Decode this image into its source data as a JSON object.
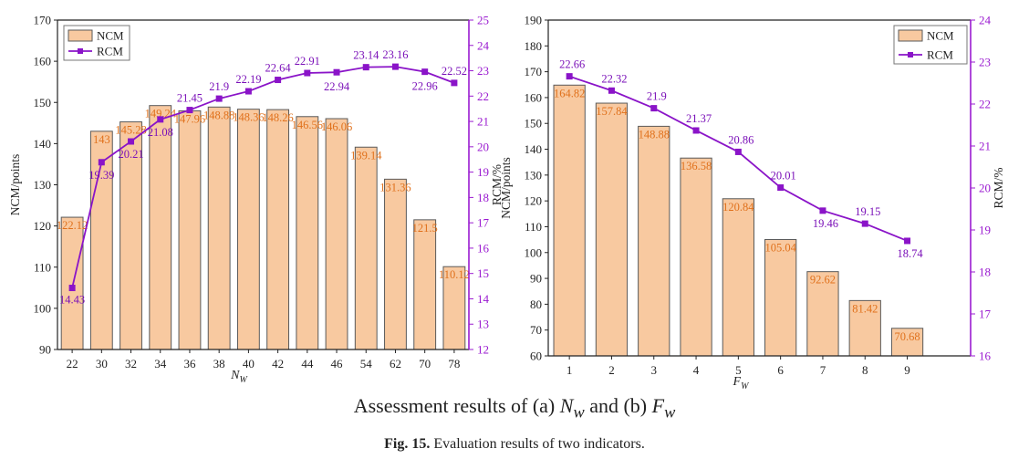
{
  "chart_data": [
    {
      "type": "bar+line",
      "panel": "a",
      "categories": [
        "22",
        "30",
        "32",
        "34",
        "36",
        "38",
        "40",
        "42",
        "44",
        "46",
        "54",
        "62",
        "70",
        "78"
      ],
      "series": [
        {
          "name": "NCM",
          "type": "bar",
          "axis": "left",
          "values": [
            122.12,
            143,
            145.28,
            149.24,
            147.96,
            148.88,
            148.36,
            148.26,
            146.56,
            146.06,
            139.14,
            131.36,
            121.5,
            110.12
          ]
        },
        {
          "name": "RCM",
          "type": "line",
          "axis": "right",
          "values": [
            14.43,
            19.39,
            20.21,
            21.08,
            21.45,
            21.9,
            22.19,
            22.64,
            22.91,
            22.94,
            23.14,
            23.16,
            22.96,
            22.52
          ]
        }
      ],
      "bar_labels": [
        "122.12",
        "143",
        "145.28",
        "149.24",
        "147.96",
        "148.88",
        "148.36",
        "148.26",
        "146.56",
        "146.06",
        "139.14",
        "131.36",
        "121.5",
        "110.12"
      ],
      "line_labels": [
        "14.43",
        "19.39",
        "20.21",
        "21.08",
        "21.45",
        "21.9",
        "22.19",
        "22.64",
        "22.91",
        "22.94",
        "23.14",
        "23.16",
        "22.96",
        "22.52"
      ],
      "ylabel_left": "NCM/points",
      "ylabel_right": "RCM/%",
      "xlabel_main": "N",
      "xlabel_sub": "W",
      "ylim_left": [
        90,
        170
      ],
      "yticks_left": [
        "90",
        "100",
        "110",
        "120",
        "130",
        "140",
        "150",
        "160",
        "170"
      ],
      "ylim_right": [
        12,
        25
      ],
      "yticks_right": [
        "12",
        "13",
        "14",
        "15",
        "16",
        "17",
        "18",
        "19",
        "20",
        "21",
        "22",
        "23",
        "24",
        "25"
      ],
      "legend": "top-left",
      "grid": false
    },
    {
      "type": "bar+line",
      "panel": "b",
      "categories": [
        "1",
        "2",
        "3",
        "4",
        "5",
        "6",
        "7",
        "8",
        "9"
      ],
      "series": [
        {
          "name": "NCM",
          "type": "bar",
          "axis": "left",
          "values": [
            164.82,
            157.84,
            148.88,
            136.58,
            120.84,
            105.04,
            92.62,
            81.42,
            70.68
          ]
        },
        {
          "name": "RCM",
          "type": "line",
          "axis": "right",
          "values": [
            22.66,
            22.32,
            21.9,
            21.37,
            20.86,
            20.01,
            19.46,
            19.15,
            18.74
          ]
        }
      ],
      "bar_labels": [
        "164.82",
        "157.84",
        "148.88",
        "136.58",
        "120.84",
        "105.04",
        "92.62",
        "81.42",
        "70.68"
      ],
      "line_labels": [
        "22.66",
        "22.32",
        "21.9",
        "21.37",
        "20.86",
        "20.01",
        "19.46",
        "19.15",
        "18.74"
      ],
      "ylabel_left": "NCM/points",
      "ylabel_right": "RCM/%",
      "xlabel_main": "F",
      "xlabel_sub": "W",
      "ylim_left": [
        60,
        190
      ],
      "yticks_left": [
        "60",
        "70",
        "80",
        "90",
        "100",
        "110",
        "120",
        "130",
        "140",
        "150",
        "160",
        "170",
        "180",
        "190"
      ],
      "ylim_right": [
        16,
        24
      ],
      "yticks_right": [
        "16",
        "17",
        "18",
        "19",
        "20",
        "21",
        "22",
        "23",
        "24"
      ],
      "legend": "top-right",
      "grid": false
    }
  ],
  "colors": {
    "bar_fill": "#f8c9a0",
    "bar_stroke": "#5a5a5a",
    "bar_label": "#e0711c",
    "line": "#8a14c8",
    "line_label": "#7a10b8",
    "right_axis": "#9a1ad0",
    "axis": "#222222"
  },
  "caption": {
    "main_prefix": "Assessment results of (a) ",
    "main_n": "N",
    "main_n_sub": "w",
    "main_mid": " and (b) ",
    "main_f": "F",
    "main_f_sub": "w",
    "fig_label": "Fig. 15.",
    "fig_text": " Evaluation results of two indicators."
  }
}
